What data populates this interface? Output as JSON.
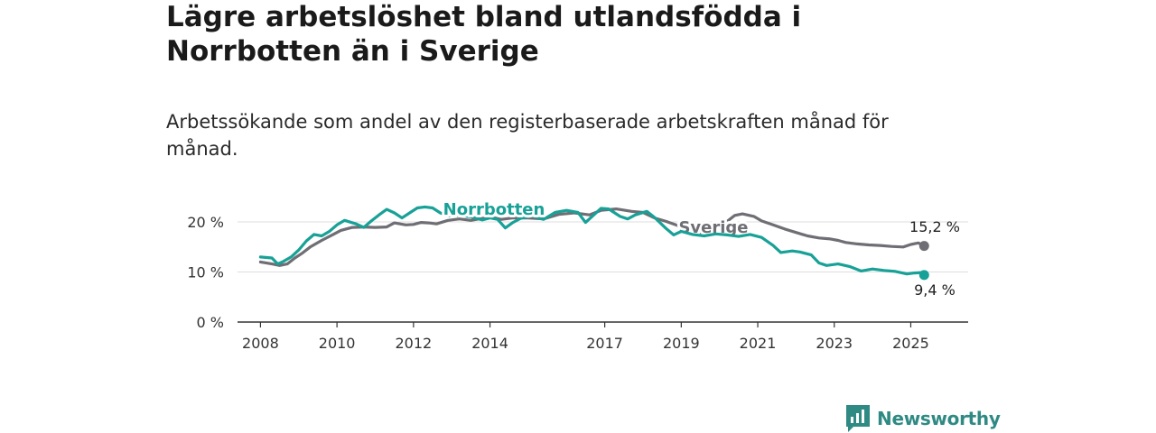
{
  "header": {
    "title": "Lägre arbetslöshet bland utlandsfödda i Norrbotten än i Sverige",
    "subtitle": "Arbetssökande som andel av den registerbaserade arbetskraften månad för månad."
  },
  "brand": {
    "name": "Newsworthy"
  },
  "colors": {
    "norrbotten": "#18a197",
    "sverige": "#6e6e74",
    "grid": "#dddddd",
    "axis": "#333333",
    "brand": "#2f8a83"
  },
  "chart_data": {
    "type": "line",
    "title": "Lägre arbetslöshet bland utlandsfödda i Norrbotten än i Sverige",
    "subtitle": "Arbetssökande som andel av den registerbaserade arbetskraften månad för månad.",
    "xlabel": "",
    "ylabel": "",
    "xlim": [
      2007.4,
      2026.5
    ],
    "ylim": [
      0,
      20
    ],
    "y_ticks": [
      0,
      10,
      20
    ],
    "y_tick_labels": [
      "0 %",
      "10 %",
      "20 %"
    ],
    "x_ticks": [
      2008,
      2010,
      2012,
      2014,
      2017,
      2019,
      2021,
      2023,
      2025
    ],
    "x_tick_labels": [
      "2008",
      "2010",
      "2012",
      "2014",
      "2017",
      "2019",
      "2021",
      "2023",
      "2025"
    ],
    "grid": true,
    "series": [
      {
        "name": "Sverige",
        "end_label": "15,2 %",
        "points": [
          [
            2008.0,
            12.0
          ],
          [
            2008.3,
            11.6
          ],
          [
            2008.5,
            11.3
          ],
          [
            2008.7,
            11.6
          ],
          [
            2008.9,
            12.8
          ],
          [
            2009.1,
            13.8
          ],
          [
            2009.3,
            15.0
          ],
          [
            2009.6,
            16.3
          ],
          [
            2009.9,
            17.5
          ],
          [
            2010.1,
            18.3
          ],
          [
            2010.4,
            18.9
          ],
          [
            2010.7,
            19.0
          ],
          [
            2011.0,
            18.9
          ],
          [
            2011.3,
            19.0
          ],
          [
            2011.5,
            19.8
          ],
          [
            2011.8,
            19.4
          ],
          [
            2012.0,
            19.5
          ],
          [
            2012.2,
            19.9
          ],
          [
            2012.4,
            19.8
          ],
          [
            2012.6,
            19.6
          ],
          [
            2012.9,
            20.3
          ],
          [
            2013.2,
            20.6
          ],
          [
            2013.5,
            20.3
          ],
          [
            2013.8,
            20.7
          ],
          [
            2014.0,
            21.0
          ],
          [
            2014.3,
            20.5
          ],
          [
            2014.6,
            20.8
          ],
          [
            2015.0,
            20.8
          ],
          [
            2015.4,
            20.6
          ],
          [
            2015.8,
            21.5
          ],
          [
            2016.2,
            21.8
          ],
          [
            2016.6,
            21.4
          ],
          [
            2016.9,
            22.3
          ],
          [
            2017.3,
            22.6
          ],
          [
            2017.7,
            22.1
          ],
          [
            2018.0,
            21.9
          ],
          [
            2018.3,
            20.8
          ],
          [
            2018.6,
            20.1
          ],
          [
            2018.9,
            19.3
          ],
          [
            2019.2,
            18.3
          ],
          [
            2019.5,
            17.8
          ],
          [
            2019.8,
            18.3
          ],
          [
            2020.1,
            19.5
          ],
          [
            2020.4,
            21.3
          ],
          [
            2020.6,
            21.6
          ],
          [
            2020.9,
            21.1
          ],
          [
            2021.1,
            20.2
          ],
          [
            2021.4,
            19.4
          ],
          [
            2021.7,
            18.6
          ],
          [
            2022.0,
            17.9
          ],
          [
            2022.3,
            17.2
          ],
          [
            2022.6,
            16.8
          ],
          [
            2022.9,
            16.6
          ],
          [
            2023.1,
            16.3
          ],
          [
            2023.3,
            15.9
          ],
          [
            2023.6,
            15.6
          ],
          [
            2023.9,
            15.4
          ],
          [
            2024.2,
            15.3
          ],
          [
            2024.5,
            15.1
          ],
          [
            2024.8,
            15.0
          ],
          [
            2025.0,
            15.5
          ],
          [
            2025.2,
            15.8
          ],
          [
            2025.35,
            15.2
          ]
        ]
      },
      {
        "name": "Norrbotten",
        "end_label": "9,4 %",
        "points": [
          [
            2008.0,
            13.0
          ],
          [
            2008.3,
            12.8
          ],
          [
            2008.45,
            11.6
          ],
          [
            2008.6,
            12.1
          ],
          [
            2008.8,
            13.0
          ],
          [
            2009.0,
            14.4
          ],
          [
            2009.2,
            16.2
          ],
          [
            2009.4,
            17.5
          ],
          [
            2009.6,
            17.2
          ],
          [
            2009.8,
            18.1
          ],
          [
            2010.0,
            19.4
          ],
          [
            2010.2,
            20.3
          ],
          [
            2010.5,
            19.6
          ],
          [
            2010.7,
            18.9
          ],
          [
            2010.9,
            20.2
          ],
          [
            2011.1,
            21.4
          ],
          [
            2011.3,
            22.5
          ],
          [
            2011.5,
            21.8
          ],
          [
            2011.7,
            20.8
          ],
          [
            2011.9,
            21.8
          ],
          [
            2012.1,
            22.8
          ],
          [
            2012.3,
            23.0
          ],
          [
            2012.5,
            22.8
          ],
          [
            2012.7,
            21.8
          ],
          [
            2012.9,
            21.2
          ],
          [
            2013.2,
            21.3
          ],
          [
            2013.5,
            21.0
          ],
          [
            2013.8,
            20.4
          ],
          [
            2014.0,
            20.8
          ],
          [
            2014.2,
            20.5
          ],
          [
            2014.4,
            18.8
          ],
          [
            2014.6,
            19.9
          ],
          [
            2014.8,
            20.7
          ],
          [
            2015.1,
            21.2
          ],
          [
            2015.4,
            20.5
          ],
          [
            2015.7,
            21.9
          ],
          [
            2016.0,
            22.3
          ],
          [
            2016.3,
            21.9
          ],
          [
            2016.5,
            19.9
          ],
          [
            2016.7,
            21.3
          ],
          [
            2016.9,
            22.7
          ],
          [
            2017.1,
            22.6
          ],
          [
            2017.4,
            21.1
          ],
          [
            2017.6,
            20.6
          ],
          [
            2017.8,
            21.4
          ],
          [
            2018.1,
            22.1
          ],
          [
            2018.3,
            20.9
          ],
          [
            2018.6,
            18.7
          ],
          [
            2018.8,
            17.4
          ],
          [
            2019.0,
            18.1
          ],
          [
            2019.3,
            17.5
          ],
          [
            2019.6,
            17.2
          ],
          [
            2019.9,
            17.6
          ],
          [
            2020.2,
            17.4
          ],
          [
            2020.5,
            17.1
          ],
          [
            2020.8,
            17.5
          ],
          [
            2021.1,
            16.9
          ],
          [
            2021.4,
            15.3
          ],
          [
            2021.6,
            13.9
          ],
          [
            2021.9,
            14.2
          ],
          [
            2022.1,
            14.0
          ],
          [
            2022.4,
            13.4
          ],
          [
            2022.6,
            11.8
          ],
          [
            2022.8,
            11.3
          ],
          [
            2023.1,
            11.6
          ],
          [
            2023.4,
            11.1
          ],
          [
            2023.7,
            10.2
          ],
          [
            2024.0,
            10.6
          ],
          [
            2024.3,
            10.3
          ],
          [
            2024.6,
            10.1
          ],
          [
            2024.9,
            9.6
          ],
          [
            2025.1,
            9.8
          ],
          [
            2025.3,
            9.9
          ],
          [
            2025.35,
            9.4
          ]
        ]
      }
    ]
  }
}
